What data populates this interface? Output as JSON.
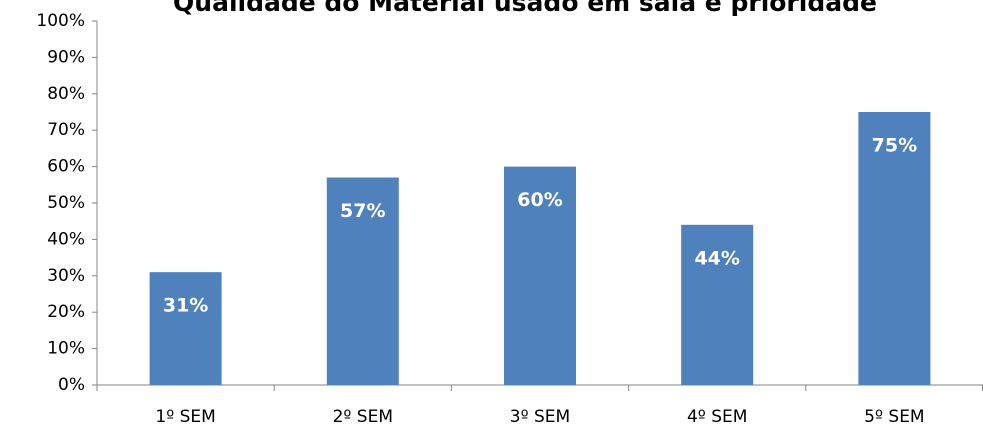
{
  "chart_data": {
    "type": "bar",
    "title": "Qualidade do Material usado em sala é prioridade",
    "categories": [
      "1º SEM",
      "2º SEM",
      "3º SEM",
      "4º SEM",
      "5º SEM"
    ],
    "values": [
      31,
      57,
      60,
      44,
      75
    ],
    "value_labels": [
      "31%",
      "57%",
      "60%",
      "44%",
      "75%"
    ],
    "color": "#4f81bd",
    "ylim": [
      0,
      100
    ],
    "yticks": [
      {
        "value": 0,
        "label": "0%"
      },
      {
        "value": 10,
        "label": "10%"
      },
      {
        "value": 20,
        "label": "20%"
      },
      {
        "value": 30,
        "label": "30%"
      },
      {
        "value": 40,
        "label": "40%"
      },
      {
        "value": 50,
        "label": "50%"
      },
      {
        "value": 60,
        "label": "60%"
      },
      {
        "value": 70,
        "label": "70%"
      },
      {
        "value": 80,
        "label": "80%"
      },
      {
        "value": 90,
        "label": "90%"
      },
      {
        "value": 100,
        "label": "100%"
      }
    ],
    "grid": false
  }
}
